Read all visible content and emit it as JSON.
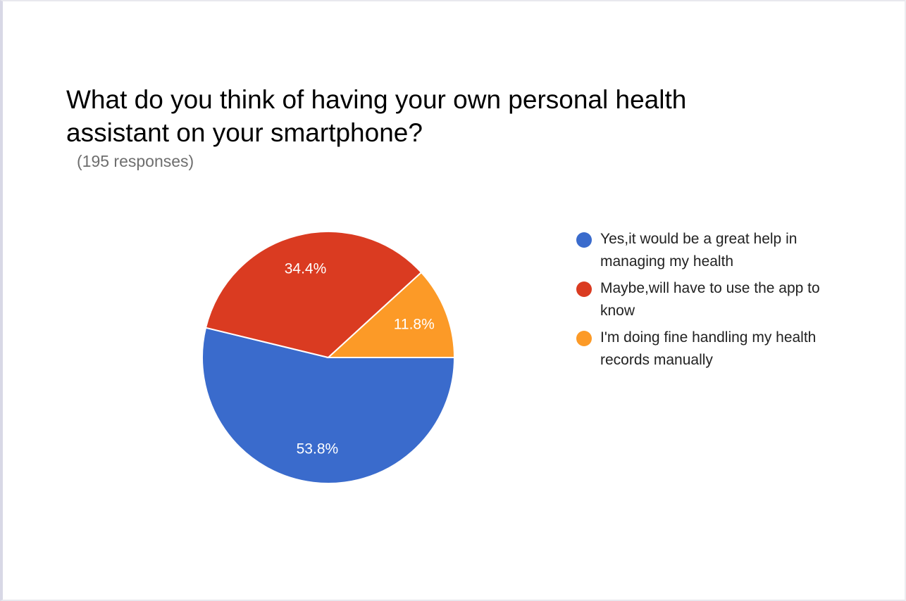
{
  "chart_data": {
    "type": "pie",
    "title": "What do you think of having your own personal health assistant on your smartphone?",
    "subtitle": "(195 responses)",
    "slices": [
      {
        "label": "Yes,it would be a great help in managing my health",
        "value": 53.8,
        "display": "53.8%",
        "color": "#3a6bcc"
      },
      {
        "label": "Maybe,will have to use the app to know",
        "value": 34.4,
        "display": "34.4%",
        "color": "#da3b21"
      },
      {
        "label": "I'm doing fine handling my health records manually",
        "value": 11.8,
        "display": "11.8%",
        "color": "#fc9a27"
      }
    ],
    "legend_position": "right"
  }
}
